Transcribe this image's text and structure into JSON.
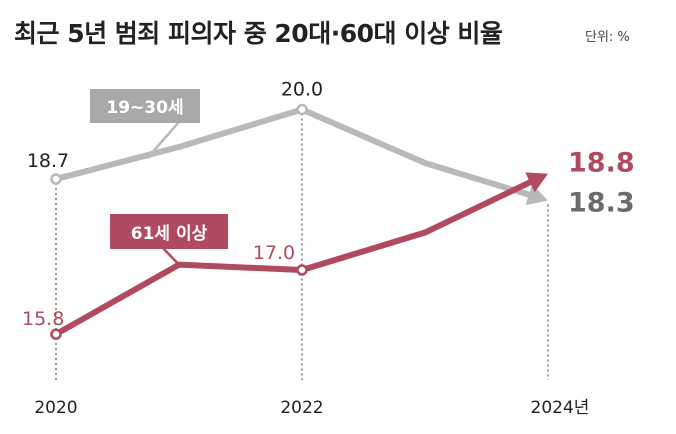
{
  "chart_data": {
    "type": "line",
    "title": "최근 5년 범죄 피의자 중 20대·60대 이상 비율",
    "unit_label": "단위: %",
    "x": [
      "2020",
      "2021",
      "2022",
      "2023",
      "2024"
    ],
    "x_tick_labels": [
      "2020",
      "2022",
      "2024년"
    ],
    "x_tick_values": [
      "2020",
      "2022",
      "2024"
    ],
    "ylim": [
      15.0,
      21.0
    ],
    "grid": false,
    "series": [
      {
        "name": "19~30세",
        "color": "#b9b9b9",
        "label_bg": "#a9a9a9",
        "values": [
          18.7,
          19.3,
          20.0,
          19.0,
          18.3
        ],
        "point_labels": [
          "18.7",
          "20.0",
          "18.3"
        ],
        "point_label_color": "#222222",
        "end_label_color": "#6b6b6b"
      },
      {
        "name": "61세 이상",
        "color": "#b04a5e",
        "label_bg": "#b04a5e",
        "values": [
          15.8,
          17.1,
          17.0,
          17.7,
          18.8
        ],
        "point_labels": [
          "15.8",
          "17.0",
          "18.8"
        ],
        "point_label_color": "#b04a5e",
        "end_label_color": "#b04a5e"
      }
    ]
  }
}
